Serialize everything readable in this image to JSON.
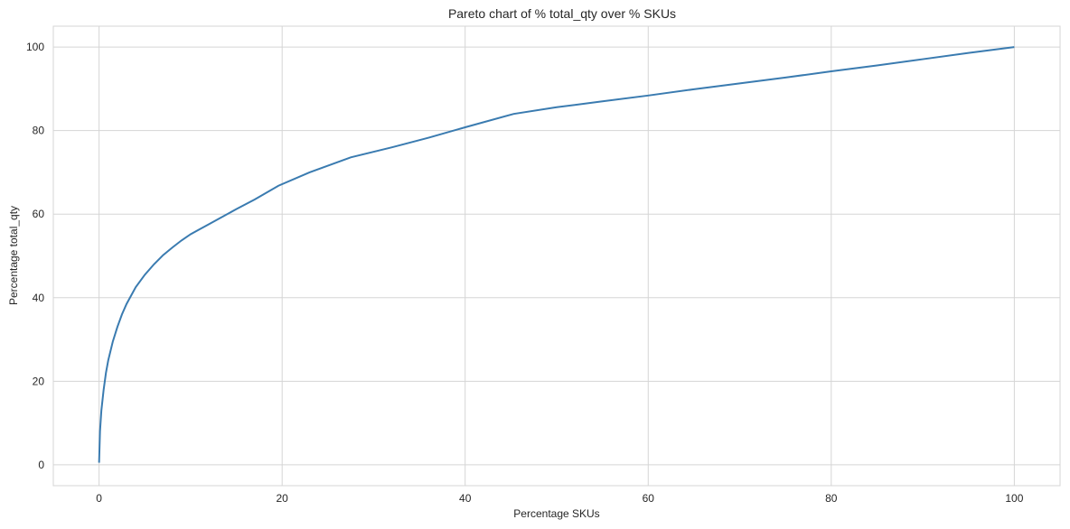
{
  "chart_data": {
    "type": "line",
    "title": "Pareto chart of % total_qty over % SKUs",
    "xlabel": "Percentage SKUs",
    "ylabel": "Percentage total_qty",
    "xlim": [
      -5,
      105
    ],
    "ylim": [
      -5,
      105
    ],
    "xticks": [
      0,
      20,
      40,
      60,
      80,
      100
    ],
    "yticks": [
      0,
      20,
      40,
      60,
      80,
      100
    ],
    "grid": true,
    "line_color": "#3a7bb0",
    "series": [
      {
        "x": [
          0,
          0.1,
          0.25,
          0.5,
          0.75,
          1,
          1.5,
          2,
          2.5,
          3,
          4,
          5,
          6,
          7,
          8,
          9,
          10,
          12,
          15,
          17,
          19.6,
          23,
          27.5,
          32,
          36,
          40,
          45.3,
          50,
          55,
          60,
          65,
          70,
          75,
          80,
          85,
          90,
          95,
          100
        ],
        "y": [
          0.5,
          8,
          13,
          18,
          22,
          25,
          29.5,
          33,
          36,
          38.5,
          42.5,
          45.5,
          48,
          50.2,
          52,
          53.7,
          55.2,
          57.6,
          61.2,
          63.5,
          66.8,
          70,
          73.6,
          76,
          78.3,
          80.8,
          84,
          85.6,
          87,
          88.4,
          89.9,
          91.3,
          92.7,
          94.2,
          95.6,
          97.1,
          98.6,
          100
        ]
      }
    ]
  }
}
